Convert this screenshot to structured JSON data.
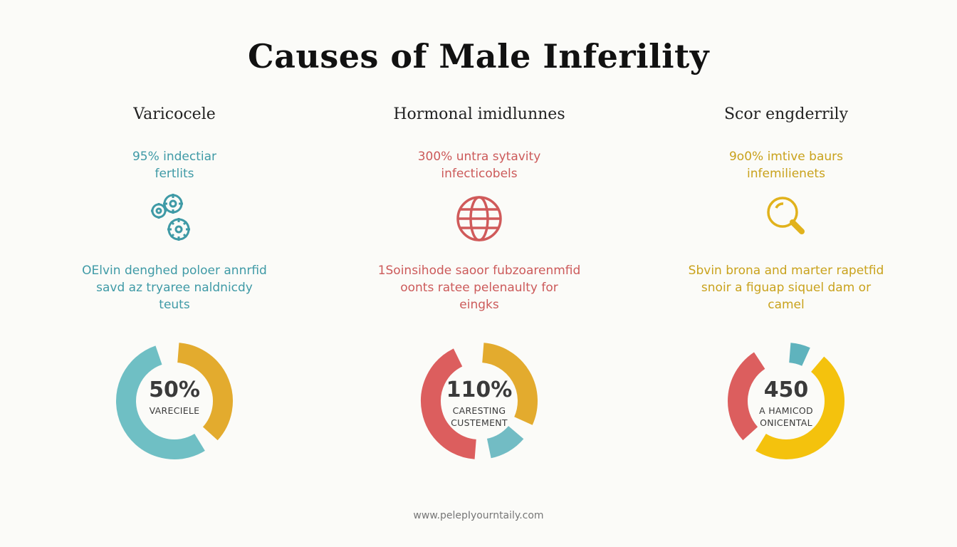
{
  "title": "Causes of Male Inferility",
  "columns": [
    {
      "heading": "Varicocele",
      "stat": "95% indectiar\nfertlits",
      "icon": "gears-icon",
      "description": "OElvin denghed poloer annrfid\nsavd az tryaree naldnicdy\nteuts",
      "color": "#3f9aa6",
      "donut": {
        "value": "50%",
        "caption": "VARECIELE",
        "segments": [
          {
            "color": "#e3ab2e",
            "share": 0.38
          },
          {
            "color": "#6fbfc4",
            "share": 0.56
          }
        ]
      }
    },
    {
      "heading": "Hormonal imidlunnes",
      "stat": "300% untra sytavity\ninfecticobels",
      "icon": "globe-icon",
      "description": "1Soinsihode saoor fubzoarenmfid\noonts ratee pelenaulty for\neingks",
      "color": "#cc5a5a",
      "donut": {
        "value": "110%",
        "caption": "CARESTING\nCUSTEMENT",
        "segments": [
          {
            "color": "#e3ab2e",
            "share": 0.33
          },
          {
            "color": "#72bcc4",
            "share": 0.13
          },
          {
            "color": "#dc5e5e",
            "share": 0.44
          }
        ]
      }
    },
    {
      "heading": "Scor engderrily",
      "stat": "9o0% imtive baurs\ninfemilienets",
      "icon": "magnifier-icon",
      "description": "Sbvin brona and marter rapetfid\nsnoir a figuap siquel dam or\ncamel",
      "color": "#c9a21c",
      "donut": {
        "value": "450",
        "caption": "A HAMICOD\nONICENTAL",
        "segments": [
          {
            "color": "#5fb3bd",
            "share": 0.08
          },
          {
            "color": "#f4c20d",
            "share": 0.5
          },
          {
            "color": "#dc5e5e",
            "share": 0.3
          }
        ]
      }
    }
  ],
  "footer": "www.pelepIyourntaily.com"
}
